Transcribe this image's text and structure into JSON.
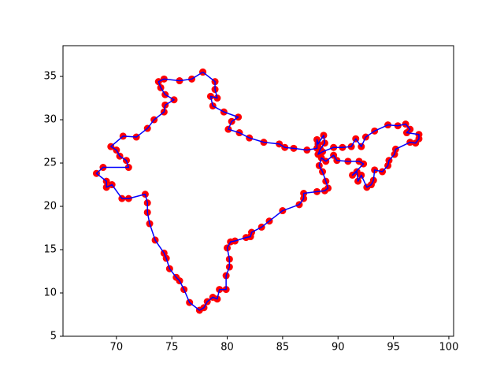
{
  "chart_data": {
    "type": "line",
    "x": [
      77.8,
      78.9,
      78.9,
      79.1,
      78.5,
      78.7,
      79.7,
      81.0,
      80.4,
      80.1,
      81.1,
      82.0,
      83.3,
      84.7,
      85.2,
      86.0,
      87.2,
      88.1,
      88.1,
      88.2,
      88.7,
      88.8,
      88.4,
      88.2,
      88.6,
      89.6,
      90.4,
      91.2,
      91.6,
      92.1,
      92.5,
      93.3,
      94.5,
      95.4,
      96.1,
      96.5,
      96.2,
      97.3,
      97.3,
      97.0,
      96.5,
      95.2,
      95.1,
      94.6,
      94.5,
      94.0,
      93.3,
      93.2,
      93.0,
      92.6,
      92.1,
      91.8,
      91.7,
      91.3,
      92.3,
      91.9,
      90.9,
      89.9,
      89.6,
      88.9,
      88.5,
      88.3,
      88.6,
      88.9,
      89.1,
      88.8,
      88.1,
      86.9,
      86.9,
      86.5,
      85.0,
      83.8,
      83.1,
      82.2,
      82.1,
      81.7,
      80.7,
      80.3,
      80.0,
      80.2,
      80.2,
      79.9,
      79.9,
      79.3,
      79.1,
      78.7,
      78.2,
      77.9,
      77.5,
      76.6,
      76.1,
      75.7,
      75.4,
      74.8,
      74.5,
      74.3,
      73.5,
      73.0,
      72.8,
      72.8,
      72.6,
      71.1,
      70.5,
      69.6,
      69.1,
      69.1,
      68.2,
      68.8,
      71.1,
      70.9,
      70.3,
      70.0,
      69.5,
      70.6,
      71.8,
      72.8,
      73.4,
      74.3,
      74.4,
      75.2,
      74.4,
      74.0,
      73.8,
      74.3,
      75.7,
      76.8,
      77.8
    ],
    "series": [
      {
        "color": "#0000ff",
        "marker_color": "#ff0000",
        "values": [
          35.5,
          34.4,
          33.5,
          32.5,
          32.7,
          31.6,
          30.9,
          30.3,
          29.8,
          28.9,
          28.5,
          27.9,
          27.4,
          27.2,
          26.8,
          26.7,
          26.5,
          26.7,
          27.7,
          27.2,
          28.2,
          27.3,
          26.6,
          26.0,
          26.3,
          26.8,
          26.8,
          26.9,
          27.8,
          26.9,
          28.0,
          28.7,
          29.4,
          29.3,
          29.5,
          28.9,
          28.5,
          28.3,
          27.8,
          27.3,
          27.4,
          26.6,
          26.0,
          25.3,
          24.7,
          24.0,
          24.2,
          23.0,
          22.5,
          22.2,
          23.6,
          22.9,
          24.0,
          23.6,
          24.9,
          25.2,
          25.2,
          25.3,
          25.9,
          25.2,
          25.6,
          24.7,
          24.0,
          22.9,
          22.1,
          21.8,
          21.7,
          21.5,
          20.9,
          20.2,
          19.5,
          18.3,
          17.6,
          17.0,
          16.5,
          16.4,
          16.0,
          15.9,
          15.2,
          13.9,
          13.0,
          12.0,
          10.4,
          10.4,
          9.3,
          9.5,
          9.0,
          8.3,
          8.0,
          8.9,
          10.4,
          11.4,
          11.8,
          12.8,
          14.0,
          14.6,
          16.1,
          18.0,
          19.3,
          20.4,
          21.4,
          20.9,
          20.9,
          22.5,
          22.2,
          22.9,
          23.8,
          24.5,
          24.5,
          25.3,
          25.8,
          26.5,
          26.9,
          28.1,
          28.0,
          29.0,
          30.0,
          30.9,
          31.7,
          32.3,
          32.9,
          33.7,
          34.4,
          34.7,
          34.5,
          34.7,
          35.5
        ]
      }
    ],
    "xlim": [
      65.18,
      100.43
    ],
    "ylim": [
      5,
      38.55
    ],
    "xticks": [
      70,
      75,
      80,
      85,
      90,
      95,
      100
    ],
    "yticks": [
      5,
      10,
      15,
      20,
      25,
      30,
      35
    ]
  }
}
